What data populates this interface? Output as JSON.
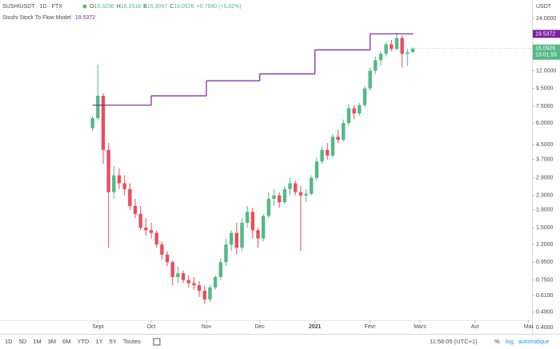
{
  "chart_data": {
    "type": "candlestick",
    "title": "SUSHIUSDT · 1D · FTX",
    "quote_prefixes": [
      "O",
      "H",
      "B",
      "C"
    ],
    "change_label": "+0.7690 (+5.02%)",
    "up_color": "#53b987",
    "down_color": "#eb4d5c",
    "log_scale": true,
    "x": [
      0,
      3,
      6,
      9,
      12,
      15,
      18,
      21,
      24,
      27,
      30,
      33,
      36,
      39,
      42,
      45,
      48,
      51,
      54,
      57,
      60,
      63,
      66,
      69,
      72,
      75,
      78,
      81,
      84,
      87,
      90,
      93,
      96,
      99,
      102,
      105,
      108,
      111,
      114,
      117,
      120,
      123,
      126,
      129,
      132,
      135,
      138,
      141,
      144,
      147,
      150,
      153,
      156,
      159,
      162,
      165,
      168,
      171,
      174,
      177,
      180
    ],
    "open": [
      5.6,
      6.4,
      8.6,
      4.2,
      2.4,
      3.0,
      2.7,
      2.5,
      2.0,
      1.8,
      1.5,
      1.45,
      1.4,
      1.2,
      1.05,
      0.95,
      0.78,
      0.82,
      0.75,
      0.72,
      0.7,
      0.65,
      0.58,
      0.68,
      0.78,
      0.95,
      1.2,
      1.4,
      1.15,
      1.6,
      1.85,
      1.45,
      1.3,
      1.75,
      2.2,
      2.3,
      2.1,
      2.5,
      2.7,
      2.4,
      2.3,
      2.35,
      2.9,
      3.6,
      4.2,
      3.9,
      5.0,
      4.8,
      6.0,
      7.3,
      6.8,
      7.6,
      9.5,
      12.0,
      13.8,
      15.0,
      17.0,
      16.0,
      18.5,
      15.0,
      15.3236
    ],
    "high": [
      6.6,
      13,
      8.9,
      4.6,
      3.4,
      3.3,
      3.0,
      2.7,
      2.2,
      2.0,
      1.7,
      1.6,
      1.45,
      1.25,
      1.1,
      0.97,
      0.9,
      0.85,
      0.8,
      0.78,
      0.74,
      0.7,
      0.7,
      0.8,
      1.0,
      1.3,
      1.45,
      1.6,
      1.7,
      2.0,
      1.95,
      1.5,
      1.8,
      2.4,
      2.5,
      2.4,
      2.6,
      2.9,
      2.8,
      2.6,
      2.5,
      3.0,
      3.8,
      4.4,
      4.6,
      5.2,
      5.5,
      6.3,
      7.7,
      7.6,
      7.8,
      9.8,
      12.5,
      14.5,
      15.5,
      17.5,
      18.0,
      19.8,
      19.2,
      16.0,
      16.3518
    ],
    "low": [
      5.4,
      6.2,
      3.5,
      1.15,
      2.2,
      2.5,
      2.3,
      1.9,
      1.7,
      1.45,
      1.35,
      1.3,
      1.15,
      0.98,
      0.9,
      0.7,
      0.72,
      0.72,
      0.68,
      0.66,
      0.6,
      0.55,
      0.56,
      0.66,
      0.75,
      0.9,
      1.1,
      1.05,
      1.1,
      1.5,
      1.3,
      1.15,
      1.25,
      1.7,
      2.0,
      1.95,
      2.05,
      2.3,
      2.3,
      1.1,
      2.1,
      2.3,
      2.8,
      3.5,
      3.7,
      3.8,
      4.6,
      4.7,
      5.8,
      6.3,
      6.6,
      7.4,
      9.2,
      11.5,
      12.8,
      14.5,
      15.5,
      15.8,
      12.5,
      12.8,
      15.3097
    ],
    "close": [
      6.4,
      8.6,
      4.2,
      2.4,
      3.0,
      2.7,
      2.5,
      2.0,
      1.8,
      1.5,
      1.45,
      1.4,
      1.2,
      1.05,
      0.95,
      0.78,
      0.82,
      0.75,
      0.72,
      0.7,
      0.65,
      0.58,
      0.68,
      0.78,
      0.95,
      1.2,
      1.4,
      1.15,
      1.6,
      1.85,
      1.45,
      1.3,
      1.75,
      2.2,
      2.3,
      2.1,
      2.5,
      2.7,
      2.4,
      2.3,
      2.35,
      2.9,
      3.6,
      4.2,
      3.9,
      5.0,
      4.8,
      6.0,
      7.3,
      6.8,
      7.6,
      9.5,
      12.0,
      13.8,
      15.0,
      17.0,
      16.0,
      18.5,
      15.0,
      15.3236,
      16.0926
    ],
    "overlays": [
      {
        "name": "Stushi Stock To Flow Model",
        "type": "step",
        "color": "#7b1fa2",
        "x": [
          0,
          33,
          64,
          94,
          125,
          156,
          180
        ],
        "values": [
          7.6,
          8.6,
          10.5,
          11.5,
          15.8,
          19.5372,
          19.5372
        ]
      }
    ],
    "countdown": "13:01:55",
    "y_unit": "USDT",
    "ylim": [
      0.36,
      30.6
    ],
    "yticks": [
      {
        "value": 0.4,
        "label": "0.4000"
      },
      {
        "value": 0.49,
        "label": "0.4900"
      },
      {
        "value": 0.61,
        "label": "0.6100"
      },
      {
        "value": 0.75,
        "label": "0.7500"
      },
      {
        "value": 0.95,
        "label": "0.9500"
      },
      {
        "value": 1.2,
        "label": "1.2000"
      },
      {
        "value": 1.5,
        "label": "1.5000"
      },
      {
        "value": 1.9,
        "label": "1.9000"
      },
      {
        "value": 2.3,
        "label": "2.3000"
      },
      {
        "value": 2.9,
        "label": "2.9000"
      },
      {
        "value": 3.7,
        "label": "3.7000"
      },
      {
        "value": 4.5,
        "label": "4.5000"
      },
      {
        "value": 6,
        "label": "6.0000"
      },
      {
        "value": 7.5,
        "label": "7.5000"
      },
      {
        "value": 9.5,
        "label": "9.5000"
      },
      {
        "value": 12,
        "label": "12.0000"
      },
      {
        "value": 24,
        "label": "24.0000"
      }
    ],
    "xlim": [
      -52,
      247
    ],
    "xticks": [
      {
        "value": 3,
        "label": "Sept"
      },
      {
        "value": 33,
        "label": "Oct"
      },
      {
        "value": 64,
        "label": "Nov"
      },
      {
        "value": 94,
        "label": "Dec"
      },
      {
        "value": 125,
        "label": "2021"
      },
      {
        "value": 156,
        "label": "Févr"
      },
      {
        "value": 184,
        "label": "Mars"
      },
      {
        "value": 215,
        "label": "Avr"
      },
      {
        "value": 245,
        "label": "Mai"
      }
    ]
  },
  "toolbar": {
    "ranges": [
      "1D",
      "5D",
      "1M",
      "3M",
      "6M",
      "YTD",
      "1Y",
      "5Y",
      "Toutes"
    ],
    "clock": "11:58:05 (UTC+1)",
    "percent": "%",
    "log": "log",
    "auto": "automatique"
  }
}
